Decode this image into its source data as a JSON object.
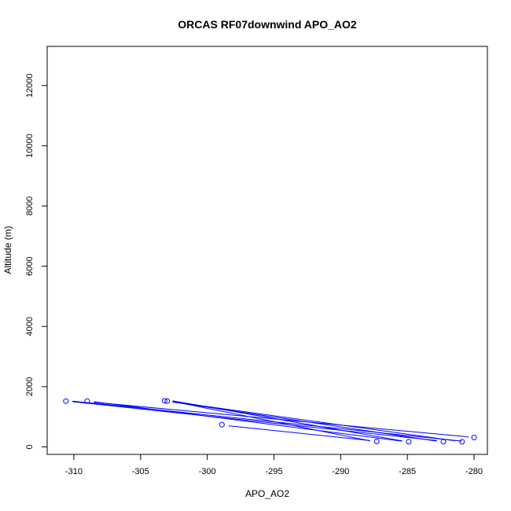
{
  "chart_data": {
    "type": "scatter",
    "title": "ORCAS RF07downwind APO_AO2",
    "xlabel": "APO_AO2",
    "ylabel": "Altitude (m)",
    "xlim": [
      -312,
      -279
    ],
    "ylim": [
      -250,
      13300
    ],
    "x_ticks": [
      -310,
      -305,
      -300,
      -295,
      -290,
      -285,
      -280
    ],
    "y_ticks": [
      0,
      2000,
      4000,
      6000,
      8000,
      10000,
      12000
    ],
    "points": [
      {
        "x": -310.6,
        "y": 1520
      },
      {
        "x": -309.0,
        "y": 1520
      },
      {
        "x": -303.2,
        "y": 1530
      },
      {
        "x": -303.0,
        "y": 1520
      },
      {
        "x": -298.9,
        "y": 740
      },
      {
        "x": -287.3,
        "y": 180
      },
      {
        "x": -284.9,
        "y": 170
      },
      {
        "x": -282.3,
        "y": 170
      },
      {
        "x": -280.9,
        "y": 170
      },
      {
        "x": -280.0,
        "y": 310
      }
    ],
    "segments": [
      {
        "x1": -310.1,
        "y1": 1520,
        "x2": -280.9,
        "y2": 190
      },
      {
        "x1": -310.1,
        "y1": 1500,
        "x2": -282.8,
        "y2": 210
      },
      {
        "x1": -308.5,
        "y1": 1500,
        "x2": -285.4,
        "y2": 190
      },
      {
        "x1": -308.5,
        "y1": 1480,
        "x2": -280.4,
        "y2": 330
      },
      {
        "x1": -302.6,
        "y1": 1510,
        "x2": -287.8,
        "y2": 200
      },
      {
        "x1": -302.6,
        "y1": 1490,
        "x2": -282.8,
        "y2": 190
      },
      {
        "x1": -302.6,
        "y1": 1530,
        "x2": -285.4,
        "y2": 200
      },
      {
        "x1": -302.6,
        "y1": 1500,
        "x2": -281.4,
        "y2": 200
      },
      {
        "x1": -298.4,
        "y1": 700,
        "x2": -287.8,
        "y2": 210
      }
    ]
  }
}
